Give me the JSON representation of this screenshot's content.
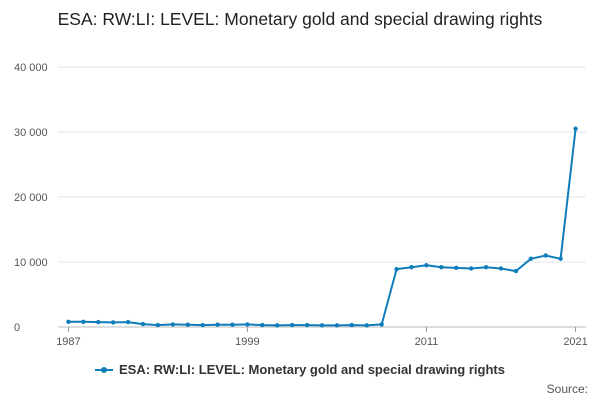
{
  "chart_data": {
    "type": "line",
    "title": "ESA: RW:LI: LEVEL: Monetary gold and special drawing rights",
    "source_label": "Source:",
    "x": [
      1987,
      1988,
      1989,
      1990,
      1991,
      1992,
      1993,
      1994,
      1995,
      1996,
      1997,
      1998,
      1999,
      2000,
      2001,
      2002,
      2003,
      2004,
      2005,
      2006,
      2007,
      2008,
      2009,
      2010,
      2011,
      2012,
      2013,
      2014,
      2015,
      2016,
      2017,
      2018,
      2019,
      2020,
      2021
    ],
    "xticks": [
      1987,
      1999,
      2011,
      2021
    ],
    "yticks": [
      0,
      10000,
      20000,
      30000,
      40000
    ],
    "ytick_labels": [
      "0",
      "10 000",
      "20 000",
      "30 000",
      "40 000"
    ],
    "ylim": [
      0,
      40000
    ],
    "xlim": [
      1986.3,
      2021.7
    ],
    "grid": "horizontal",
    "legend_position": "bottom",
    "series": [
      {
        "name": "ESA: RW:LI: LEVEL: Monetary gold and special drawing rights",
        "color": "#0f7dbb",
        "values": [
          800,
          800,
          750,
          700,
          750,
          450,
          300,
          400,
          350,
          300,
          350,
          350,
          400,
          300,
          250,
          300,
          300,
          250,
          250,
          300,
          250,
          400,
          8900,
          9200,
          9500,
          9200,
          9100,
          9000,
          9200,
          9000,
          8600,
          10500,
          11000,
          10500,
          30500
        ]
      }
    ]
  }
}
